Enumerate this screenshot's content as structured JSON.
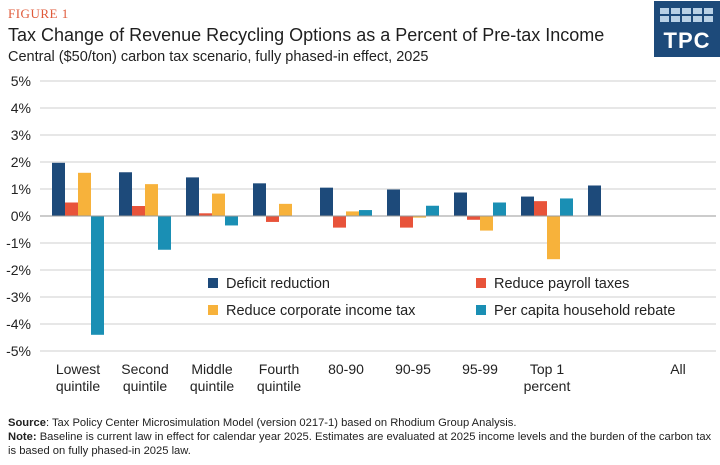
{
  "header": {
    "figure_label": "FIGURE 1",
    "title": "Tax Change of Revenue Recycling Options as a Percent of Pre-tax Income",
    "subtitle": "Central ($50/ton) carbon tax scenario, fully phased-in effect, 2025"
  },
  "logo": {
    "text": "TPC"
  },
  "chart_data": {
    "type": "bar",
    "categories": [
      [
        "Lowest",
        "quintile"
      ],
      [
        "Second",
        "quintile"
      ],
      [
        "Middle",
        "quintile"
      ],
      [
        "Fourth",
        "quintile"
      ],
      [
        "80-90"
      ],
      [
        "90-95"
      ],
      [
        "95-99"
      ],
      [
        "Top 1",
        "percent"
      ],
      [
        "All"
      ]
    ],
    "series": [
      {
        "name": "Deficit reduction",
        "color": "#1d4a7a",
        "values": [
          1.97,
          1.62,
          1.43,
          1.21,
          1.05,
          0.98,
          0.87,
          0.72,
          1.13
        ]
      },
      {
        "name": "Reduce payroll taxes",
        "color": "#e8533a",
        "values": [
          0.5,
          0.37,
          0.1,
          -0.22,
          -0.43,
          -0.43,
          -0.14,
          0.55,
          null
        ]
      },
      {
        "name": "Reduce corporate income tax",
        "color": "#f7b23b",
        "values": [
          1.6,
          1.18,
          0.83,
          0.45,
          0.17,
          -0.06,
          -0.54,
          -1.6,
          null
        ]
      },
      {
        "name": "Per capita household rebate",
        "color": "#1a8fb4",
        "values": [
          -4.4,
          -1.25,
          -0.35,
          0.0,
          0.22,
          0.38,
          0.5,
          0.65,
          null
        ]
      }
    ],
    "yticks": [
      "5%",
      "4%",
      "3%",
      "2%",
      "1%",
      "0%",
      "-1%",
      "-2%",
      "-3%",
      "-4%",
      "-5%"
    ],
    "ylim": [
      -5,
      5
    ],
    "legend_position": "lower-center"
  },
  "footer": {
    "source_label": "Source",
    "source_text": ": Tax Policy Center Microsimulation Model (version 0217-1) based on Rhodium Group Analysis.",
    "note_label": "Note:",
    "note_text": " Baseline is current law in effect for calendar year 2025. Estimates are evaluated at 2025 income levels and the burden of the carbon tax is based on fully phased-in 2025 law."
  }
}
